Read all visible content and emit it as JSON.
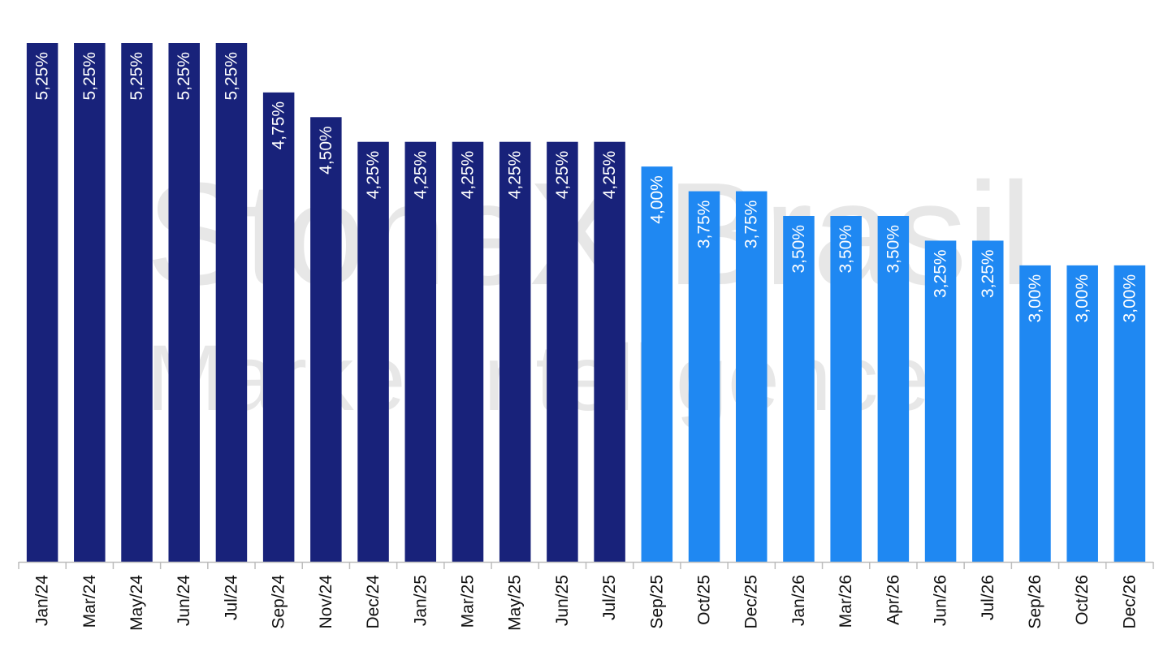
{
  "watermark": {
    "line1": "StoneX Brasil",
    "line2": "Market Intelligence"
  },
  "chart_data": {
    "type": "bar",
    "categories": [
      "Jan/24",
      "Mar/24",
      "May/24",
      "Jun/24",
      "Jul/24",
      "Sep/24",
      "Nov/24",
      "Dec/24",
      "Jan/25",
      "Mar/25",
      "May/25",
      "Jun/25",
      "Jul/25",
      "Sep/25",
      "Oct/25",
      "Dec/25",
      "Jan/26",
      "Mar/26",
      "Apr/26",
      "Jun/26",
      "Jul/26",
      "Sep/26",
      "Oct/26",
      "Dec/26"
    ],
    "values": [
      5.25,
      5.25,
      5.25,
      5.25,
      5.25,
      4.75,
      4.5,
      4.25,
      4.25,
      4.25,
      4.25,
      4.25,
      4.25,
      4.0,
      3.75,
      3.75,
      3.5,
      3.5,
      3.5,
      3.25,
      3.25,
      3.0,
      3.0,
      3.0
    ],
    "labels": [
      "5,25%",
      "5,25%",
      "5,25%",
      "5,25%",
      "5,25%",
      "4,75%",
      "4,50%",
      "4,25%",
      "4,25%",
      "4,25%",
      "4,25%",
      "4,25%",
      "4,25%",
      "4,00%",
      "3,75%",
      "3,75%",
      "3,50%",
      "3,50%",
      "3,50%",
      "3,25%",
      "3,25%",
      "3,00%",
      "3,00%",
      "3,00%"
    ],
    "series_colors": {
      "actual": "#18227a",
      "forecast": "#1f88f2"
    },
    "actual_count": 13,
    "ylim": [
      0,
      5.25
    ],
    "grid": false,
    "legend": "none",
    "title": "",
    "xlabel": "",
    "ylabel": ""
  }
}
